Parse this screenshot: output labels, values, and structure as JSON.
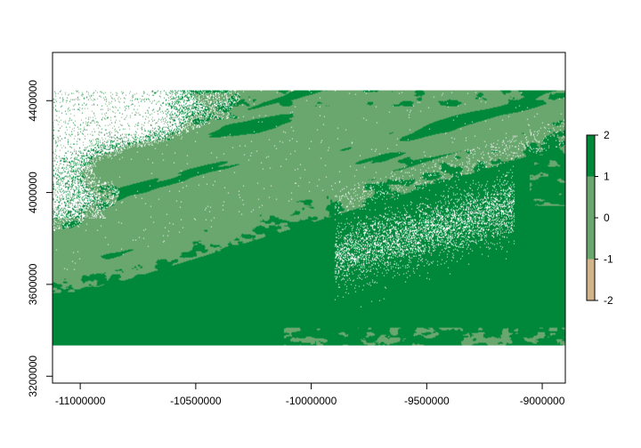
{
  "chart_data": {
    "type": "heatmap",
    "title": "",
    "xlabel": "",
    "ylabel": "",
    "xlim": [
      -11120000,
      -8900000
    ],
    "ylim": [
      3170000,
      4610000
    ],
    "raster_extent": {
      "xmin": -11120000,
      "xmax": -8900000,
      "ymin": 3335000,
      "ymax": 4445000
    },
    "x_ticks": [
      -11000000,
      -10500000,
      -10000000,
      -9500000,
      -9000000
    ],
    "x_tick_labels": [
      "-11000000",
      "-10500000",
      "-10000000",
      "-9500000",
      "-9000000"
    ],
    "y_ticks": [
      3200000,
      3600000,
      4000000,
      4400000
    ],
    "y_tick_labels": [
      "3200000",
      "3600000",
      "4000000",
      "4400000"
    ],
    "legend": {
      "position": "right",
      "ticks": [
        2,
        1,
        0,
        -1,
        -2
      ],
      "tick_labels": [
        "2",
        "1",
        "0",
        "-1",
        "-2"
      ],
      "bins": [
        {
          "from": 1,
          "to": 2,
          "color": "#00883a"
        },
        {
          "from": 0,
          "to": 1,
          "color": "#6aa76f"
        },
        {
          "from": -1,
          "to": 0,
          "color": "#6aa76f"
        },
        {
          "from": -2,
          "to": -1,
          "color": "#d2b48c"
        }
      ]
    },
    "colors": {
      "high": "#00883a",
      "mid": "#6aa76f",
      "low": "#d2b48c",
      "na": "#ffffff"
    }
  }
}
